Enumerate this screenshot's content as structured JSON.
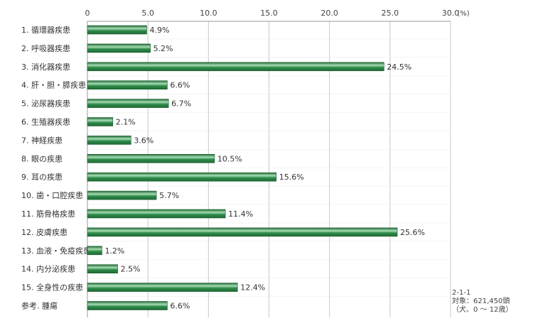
{
  "chart_data": {
    "type": "bar",
    "orientation": "horizontal",
    "categories": [
      "1. 循環器疾患",
      "2. 呼吸器疾患",
      "3. 消化器疾患",
      "4. 肝・胆・膵疾患",
      "5. 泌尿器疾患",
      "6. 生殖器疾患",
      "7. 神経疾患",
      "8. 眼の疾患",
      "9. 耳の疾患",
      "10. 歯・口腔疾患",
      "11. 筋骨格疾患",
      "12. 皮膚疾患",
      "13. 血液・免疫疾患",
      "14. 内分泌疾患",
      "15. 全身性の疾患",
      "参考. 腫瘍"
    ],
    "values": [
      4.9,
      5.2,
      24.5,
      6.6,
      6.7,
      2.1,
      3.6,
      10.5,
      15.6,
      5.7,
      11.4,
      25.6,
      1.2,
      2.5,
      12.4,
      6.6
    ],
    "value_labels": [
      "4.9%",
      "5.2%",
      "24.5%",
      "6.6%",
      "6.7%",
      "2.1%",
      "3.6%",
      "10.5%",
      "15.6%",
      "5.7%",
      "11.4%",
      "25.6%",
      "1.2%",
      "2.5%",
      "12.4%",
      "6.6%"
    ],
    "xlim": [
      0,
      30
    ],
    "x_ticks": [
      "0",
      "5.0",
      "10.0",
      "15.0",
      "20.0",
      "25.0",
      "30.0"
    ],
    "x_unit": "(%)",
    "grid": true,
    "bar_color": "#2e8b4a",
    "bar_highlight": "#a8dcb4"
  },
  "notes": {
    "figure_id": "2-1-1",
    "subject": "対象：621,450頭",
    "scope": "（犬、0 〜 12歳）"
  }
}
